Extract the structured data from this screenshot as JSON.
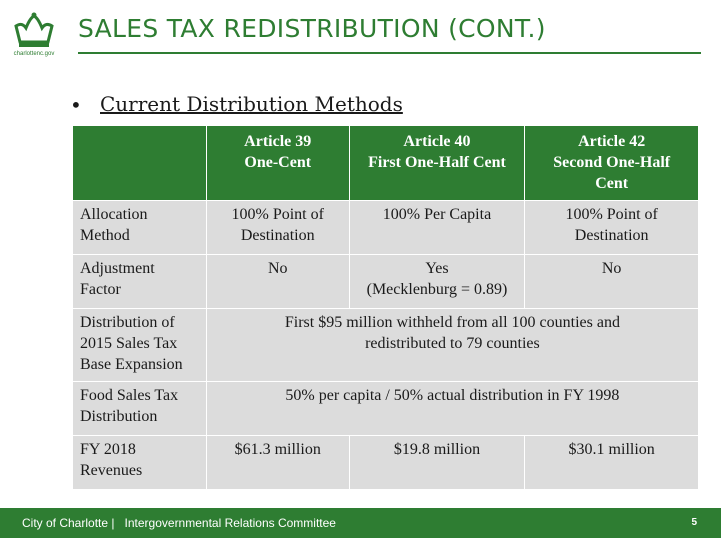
{
  "logo": {
    "text": "charlottenc.gov",
    "icon": "crown-icon"
  },
  "title": "SALES TAX REDISTRIBUTION (CONT.)",
  "subtitle": "Current Distribution Methods",
  "table": {
    "headers": [
      "",
      "Article 39\nOne-Cent",
      "Article 40\nFirst One-Half Cent",
      "Article 42\nSecond One-Half\nCent"
    ],
    "rows": [
      {
        "label": "Allocation\nMethod",
        "cells": [
          "100% Point of\nDestination",
          "100% Per Capita",
          "100% Point of\nDestination"
        ]
      },
      {
        "label": "Adjustment\nFactor",
        "cells": [
          "No",
          "Yes\n(Mecklenburg = 0.89)",
          "No"
        ]
      },
      {
        "label": "Distribution of\n2015 Sales Tax\nBase Expansion",
        "merged": "First $95 million withheld from all 100 counties and\nredistributed to 79 counties"
      },
      {
        "label": "Food Sales Tax\nDistribution",
        "merged": "50% per capita / 50% actual distribution in FY 1998"
      },
      {
        "label": "FY 2018\nRevenues",
        "cells": [
          "$61.3 million",
          "$19.8 million",
          "$30.1 million"
        ]
      }
    ]
  },
  "footer": {
    "org": "City of Charlotte",
    "separator": "|",
    "committee": "Intergovernmental Relations Committee",
    "page": "5"
  },
  "colors": {
    "brand_green": "#2e7d32",
    "cell_gray": "#dcdcdc"
  }
}
